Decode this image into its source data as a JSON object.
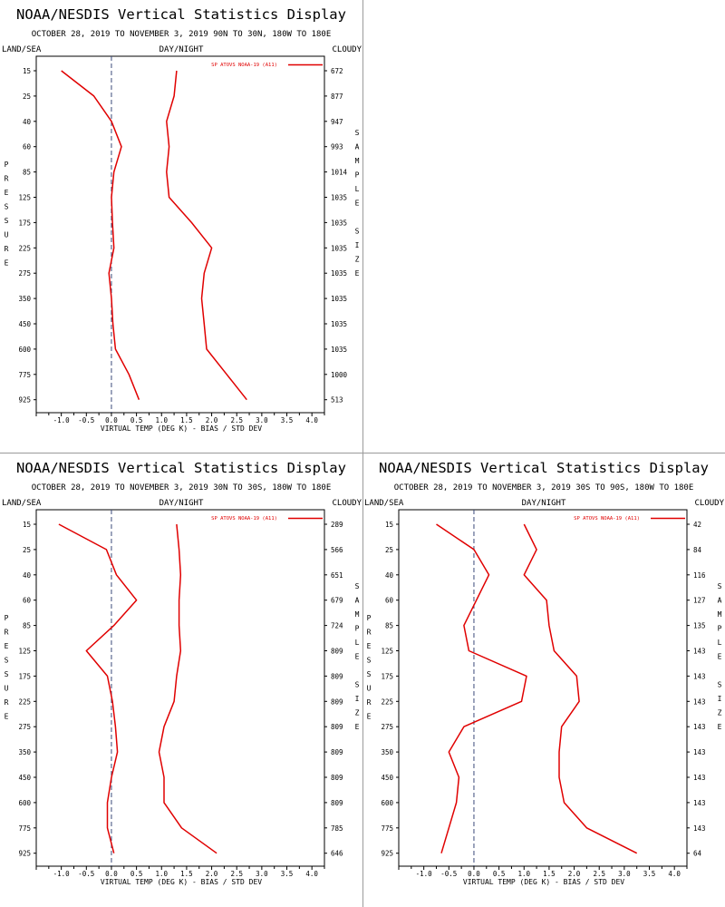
{
  "chart_data": [
    {
      "type": "line",
      "title": "NOAA/NESDIS Vertical Statistics Display",
      "subtitle": "OCTOBER 28, 2019 TO NOVEMBER 3, 2019  90N TO 30N, 180W TO 180E",
      "header_left": "LAND/SEA",
      "header_center": "DAY/NIGHT",
      "header_right": "CLOUDY",
      "ylabel": "PRESSURE",
      "y2label": "SAMPLE SIZE",
      "xlabel": "VIRTUAL TEMP (DEG K) - BIAS / STD DEV",
      "xlim": [
        -1.5,
        4.25
      ],
      "xticks": [
        "-1.0",
        "-0.5",
        "0.0",
        "0.5",
        "1.0",
        "1.5",
        "2.0",
        "2.5",
        "3.0",
        "3.5",
        "4.0"
      ],
      "pressure_levels": [
        "15",
        "25",
        "40",
        "60",
        "85",
        "125",
        "175",
        "225",
        "275",
        "350",
        "450",
        "600",
        "775",
        "925"
      ],
      "sample_size": [
        "672",
        "877",
        "947",
        "993",
        "1014",
        "1035",
        "1035",
        "1035",
        "1035",
        "1035",
        "1035",
        "1035",
        "1000",
        "513"
      ],
      "legend": "SP ATOVS NOAA-19 (A11)",
      "legend_position": "top-right",
      "color": "#e00000",
      "series": [
        {
          "values": [
            -1.0,
            -0.35,
            0.0,
            0.2,
            0.05,
            0.0,
            0.02,
            0.05,
            -0.05,
            0.0,
            0.03,
            0.08,
            0.35,
            0.55
          ]
        },
        {
          "values": [
            1.3,
            1.25,
            1.1,
            1.15,
            1.1,
            1.15,
            1.6,
            2.0,
            1.85,
            1.8,
            1.85,
            1.9,
            2.3,
            2.7
          ]
        }
      ]
    },
    {
      "type": "line",
      "title": "NOAA/NESDIS Vertical Statistics Display",
      "subtitle": "OCTOBER 28, 2019 TO NOVEMBER 3, 2019  30N TO 30S, 180W TO 180E",
      "header_left": "LAND/SEA",
      "header_center": "DAY/NIGHT",
      "header_right": "CLOUDY",
      "ylabel": "PRESSURE",
      "y2label": "SAMPLE SIZE",
      "xlabel": "VIRTUAL TEMP (DEG K) - BIAS / STD DEV",
      "xlim": [
        -1.5,
        4.25
      ],
      "xticks": [
        "-1.0",
        "-0.5",
        "0.0",
        "0.5",
        "1.0",
        "1.5",
        "2.0",
        "2.5",
        "3.0",
        "3.5",
        "4.0"
      ],
      "pressure_levels": [
        "15",
        "25",
        "40",
        "60",
        "85",
        "125",
        "175",
        "225",
        "275",
        "350",
        "450",
        "600",
        "775",
        "925"
      ],
      "sample_size": [
        "289",
        "566",
        "651",
        "679",
        "724",
        "809",
        "809",
        "809",
        "809",
        "809",
        "809",
        "809",
        "785",
        "646"
      ],
      "legend": "SP ATOVS NOAA-19 (A11)",
      "legend_position": "top-right",
      "color": "#e00000",
      "series": [
        {
          "values": [
            -1.05,
            -0.1,
            0.1,
            0.5,
            0.05,
            -0.5,
            -0.08,
            0.02,
            0.08,
            0.12,
            0.0,
            -0.08,
            -0.08,
            0.05
          ]
        },
        {
          "values": [
            1.3,
            1.35,
            1.38,
            1.35,
            1.35,
            1.38,
            1.3,
            1.25,
            1.05,
            0.95,
            1.05,
            1.05,
            1.4,
            2.1
          ]
        }
      ]
    },
    {
      "type": "line",
      "title": "NOAA/NESDIS Vertical Statistics Display",
      "subtitle": "OCTOBER 28, 2019 TO NOVEMBER 3, 2019  30S TO 90S, 180W TO 180E",
      "header_left": "LAND/SEA",
      "header_center": "DAY/NIGHT",
      "header_right": "CLOUDY",
      "ylabel": "PRESSURE",
      "y2label": "SAMPLE SIZE",
      "xlabel": "VIRTUAL TEMP (DEG K) - BIAS / STD DEV",
      "xlim": [
        -1.5,
        4.25
      ],
      "xticks": [
        "-1.0",
        "-0.5",
        "0.0",
        "0.5",
        "1.0",
        "1.5",
        "2.0",
        "2.5",
        "3.0",
        "3.5",
        "4.0"
      ],
      "pressure_levels": [
        "15",
        "25",
        "40",
        "60",
        "85",
        "125",
        "175",
        "225",
        "275",
        "350",
        "450",
        "600",
        "775",
        "925"
      ],
      "sample_size": [
        "42",
        "84",
        "116",
        "127",
        "135",
        "143",
        "143",
        "143",
        "143",
        "143",
        "143",
        "143",
        "143",
        "64"
      ],
      "legend": "SP ATOVS NOAA-19 (A11)",
      "legend_position": "top-right",
      "color": "#e00000",
      "series": [
        {
          "values": [
            -0.75,
            0.0,
            0.3,
            0.05,
            -0.2,
            -0.1,
            1.05,
            0.95,
            -0.2,
            -0.5,
            -0.3,
            -0.35,
            -0.5,
            -0.65
          ]
        },
        {
          "values": [
            1.0,
            1.25,
            1.0,
            1.45,
            1.5,
            1.6,
            2.05,
            2.1,
            1.75,
            1.7,
            1.7,
            1.8,
            2.25,
            3.25
          ]
        }
      ]
    }
  ]
}
